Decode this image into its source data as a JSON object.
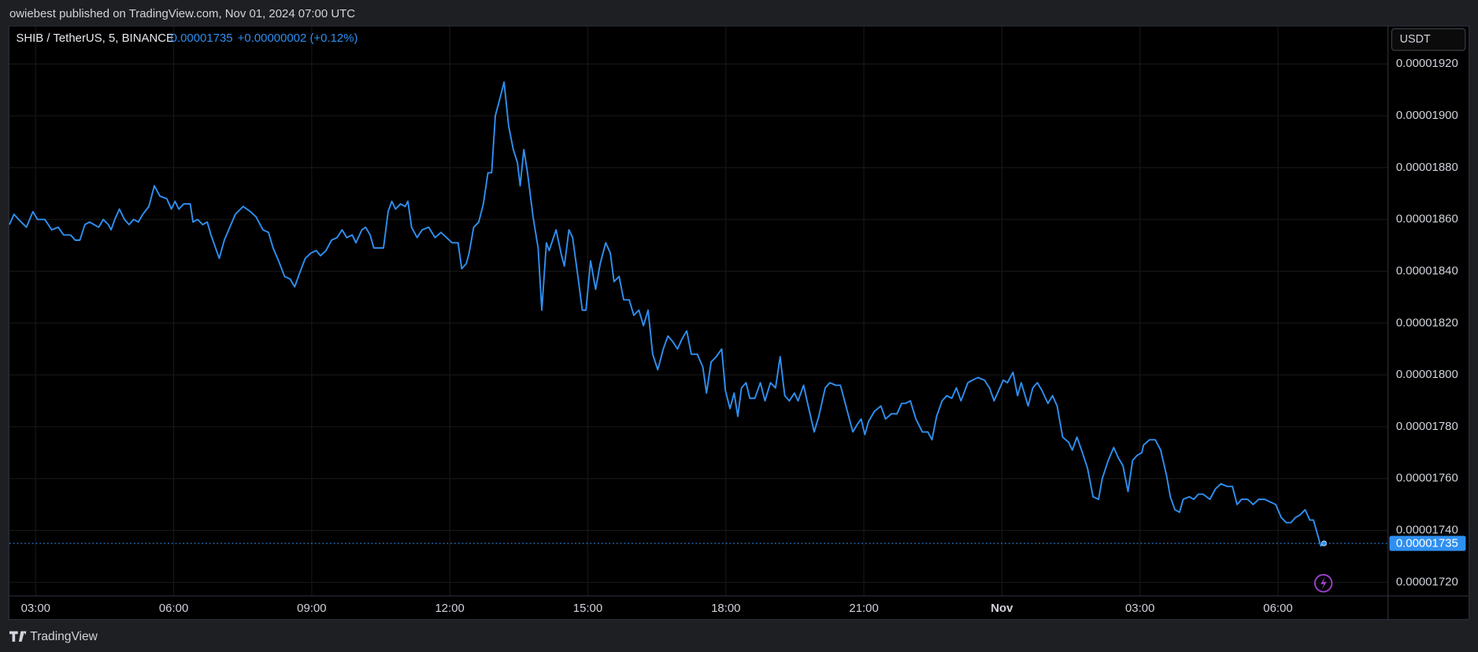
{
  "header": {
    "published": "owiebest published on TradingView.com, Nov 01, 2024 07:00 UTC",
    "symbol": "SHIB / TetherUS, 5, BINANCE",
    "change": "+0.00000002 (+0.12%)",
    "currency": "USDT",
    "brand": "TradingView"
  },
  "chart_data": {
    "type": "line",
    "color": "#2f8ff0",
    "grid": true,
    "last_price": 1.735e-05,
    "xlim": [
      2.43,
      32.38
    ],
    "xticks": [
      {
        "value": 3,
        "label": "03:00"
      },
      {
        "value": 6,
        "label": "06:00"
      },
      {
        "value": 9,
        "label": "09:00"
      },
      {
        "value": 12,
        "label": "12:00"
      },
      {
        "value": 15,
        "label": "15:00"
      },
      {
        "value": 18,
        "label": "18:00"
      },
      {
        "value": 21,
        "label": "21:00"
      },
      {
        "value": 24,
        "label": "Nov"
      },
      {
        "value": 27,
        "label": "03:00"
      },
      {
        "value": 30,
        "label": "06:00"
      }
    ],
    "ylim": [
      1.7149e-05,
      1.9345e-05
    ],
    "yticks": [
      {
        "value": 1.72e-05,
        "label": "0.00001720"
      },
      {
        "value": 1.74e-05,
        "label": "0.00001740"
      },
      {
        "value": 1.76e-05,
        "label": "0.00001760"
      },
      {
        "value": 1.78e-05,
        "label": "0.00001780"
      },
      {
        "value": 1.8e-05,
        "label": "0.00001800"
      },
      {
        "value": 1.82e-05,
        "label": "0.00001820"
      },
      {
        "value": 1.84e-05,
        "label": "0.00001840"
      },
      {
        "value": 1.86e-05,
        "label": "0.00001860"
      },
      {
        "value": 1.88e-05,
        "label": "0.00001880"
      },
      {
        "value": 1.9e-05,
        "label": "0.00001900"
      },
      {
        "value": 1.92e-05,
        "label": "0.00001920"
      }
    ],
    "x": [
      2.43,
      2.53,
      2.63,
      2.8,
      2.94,
      3.04,
      3.2,
      3.35,
      3.49,
      3.61,
      3.76,
      3.86,
      3.96,
      4.07,
      4.17,
      4.27,
      4.37,
      4.47,
      4.58,
      4.64,
      4.72,
      4.82,
      4.93,
      5.03,
      5.13,
      5.23,
      5.33,
      5.46,
      5.58,
      5.7,
      5.85,
      5.95,
      6.03,
      6.11,
      6.22,
      6.36,
      6.42,
      6.52,
      6.63,
      6.73,
      6.81,
      6.89,
      6.99,
      7.1,
      7.22,
      7.34,
      7.51,
      7.67,
      7.79,
      7.94,
      8.06,
      8.16,
      8.28,
      8.41,
      8.53,
      8.63,
      8.73,
      8.86,
      8.98,
      9.1,
      9.19,
      9.31,
      9.43,
      9.55,
      9.66,
      9.76,
      9.88,
      9.96,
      10.09,
      10.17,
      10.27,
      10.35,
      10.56,
      10.66,
      10.74,
      10.82,
      10.93,
      11.03,
      11.09,
      11.17,
      11.29,
      11.4,
      11.54,
      11.68,
      11.81,
      11.93,
      12.05,
      12.18,
      12.26,
      12.36,
      12.42,
      12.52,
      12.63,
      12.73,
      12.83,
      12.91,
      12.99,
      13.08,
      13.18,
      13.28,
      13.38,
      13.47,
      13.53,
      13.61,
      13.69,
      13.81,
      13.92,
      14.0,
      14.1,
      14.16,
      14.31,
      14.43,
      14.49,
      14.59,
      14.67,
      14.8,
      14.88,
      14.96,
      15.06,
      15.17,
      15.27,
      15.39,
      15.49,
      15.57,
      15.68,
      15.78,
      15.9,
      16.0,
      16.11,
      16.21,
      16.31,
      16.41,
      16.52,
      16.64,
      16.74,
      16.84,
      16.95,
      17.05,
      17.15,
      17.25,
      17.38,
      17.5,
      17.58,
      17.68,
      17.79,
      17.91,
      17.99,
      18.09,
      18.18,
      18.26,
      18.34,
      18.44,
      18.52,
      18.63,
      18.75,
      18.85,
      18.97,
      19.08,
      19.18,
      19.28,
      19.38,
      19.49,
      19.57,
      19.69,
      19.79,
      19.92,
      20.02,
      20.16,
      20.26,
      20.39,
      20.49,
      20.61,
      20.76,
      20.86,
      20.94,
      21.02,
      21.1,
      21.23,
      21.37,
      21.47,
      21.6,
      21.72,
      21.82,
      21.9,
      22.01,
      22.13,
      22.27,
      22.39,
      22.48,
      22.58,
      22.7,
      22.8,
      22.91,
      23.01,
      23.11,
      23.26,
      23.36,
      23.48,
      23.62,
      23.73,
      23.83,
      23.93,
      24.03,
      24.12,
      24.24,
      24.34,
      24.42,
      24.57,
      24.67,
      24.77,
      24.87,
      25.0,
      25.1,
      25.2,
      25.32,
      25.45,
      25.53,
      25.63,
      25.73,
      25.86,
      25.98,
      26.1,
      26.18,
      26.31,
      26.43,
      26.53,
      26.63,
      26.74,
      26.84,
      26.94,
      27.04,
      27.08,
      27.21,
      27.33,
      27.45,
      27.58,
      27.66,
      27.76,
      27.86,
      27.94,
      28.07,
      28.17,
      28.27,
      28.37,
      28.52,
      28.64,
      28.76,
      28.89,
      29.01,
      29.11,
      29.21,
      29.34,
      29.46,
      29.58,
      29.71,
      29.83,
      29.95,
      30.07,
      30.18,
      30.28,
      30.38,
      30.48,
      30.59,
      30.69,
      30.77,
      30.85,
      30.93,
      31.0
    ],
    "values": [
      1.858e-05,
      1.862e-05,
      1.86e-05,
      1.857e-05,
      1.863e-05,
      1.86e-05,
      1.86e-05,
      1.856e-05,
      1.857e-05,
      1.854e-05,
      1.854e-05,
      1.852e-05,
      1.852e-05,
      1.858e-05,
      1.859e-05,
      1.858e-05,
      1.857e-05,
      1.86e-05,
      1.858e-05,
      1.856e-05,
      1.86e-05,
      1.864e-05,
      1.86e-05,
      1.858e-05,
      1.86e-05,
      1.859e-05,
      1.862e-05,
      1.865e-05,
      1.873e-05,
      1.869e-05,
      1.868e-05,
      1.864e-05,
      1.867e-05,
      1.864e-05,
      1.866e-05,
      1.866e-05,
      1.859e-05,
      1.86e-05,
      1.858e-05,
      1.859e-05,
      1.854e-05,
      1.85e-05,
      1.845e-05,
      1.852e-05,
      1.857e-05,
      1.862e-05,
      1.865e-05,
      1.863e-05,
      1.861e-05,
      1.856e-05,
      1.855e-05,
      1.849e-05,
      1.844e-05,
      1.838e-05,
      1.837e-05,
      1.834e-05,
      1.839e-05,
      1.845e-05,
      1.847e-05,
      1.848e-05,
      1.846e-05,
      1.848e-05,
      1.852e-05,
      1.853e-05,
      1.856e-05,
      1.853e-05,
      1.854e-05,
      1.851e-05,
      1.856e-05,
      1.857e-05,
      1.854e-05,
      1.849e-05,
      1.849e-05,
      1.863e-05,
      1.867e-05,
      1.864e-05,
      1.866e-05,
      1.865e-05,
      1.867e-05,
      1.857e-05,
      1.853e-05,
      1.856e-05,
      1.857e-05,
      1.853e-05,
      1.855e-05,
      1.853e-05,
      1.851e-05,
      1.851e-05,
      1.841e-05,
      1.843e-05,
      1.847e-05,
      1.857e-05,
      1.859e-05,
      1.866e-05,
      1.878e-05,
      1.878e-05,
      1.9e-05,
      1.906e-05,
      1.913e-05,
      1.896e-05,
      1.887e-05,
      1.882e-05,
      1.873e-05,
      1.887e-05,
      1.878e-05,
      1.861e-05,
      1.849e-05,
      1.825e-05,
      1.851e-05,
      1.848e-05,
      1.856e-05,
      1.846e-05,
      1.842e-05,
      1.856e-05,
      1.853e-05,
      1.836e-05,
      1.825e-05,
      1.825e-05,
      1.844e-05,
      1.833e-05,
      1.843e-05,
      1.851e-05,
      1.847e-05,
      1.836e-05,
      1.838e-05,
      1.829e-05,
      1.829e-05,
      1.823e-05,
      1.825e-05,
      1.819e-05,
      1.825e-05,
      1.808e-05,
      1.802e-05,
      1.81e-05,
      1.815e-05,
      1.813e-05,
      1.81e-05,
      1.814e-05,
      1.817e-05,
      1.808e-05,
      1.808e-05,
      1.803e-05,
      1.793e-05,
      1.805e-05,
      1.807e-05,
      1.81e-05,
      1.794e-05,
      1.787e-05,
      1.793e-05,
      1.784e-05,
      1.795e-05,
      1.797e-05,
      1.791e-05,
      1.791e-05,
      1.797e-05,
      1.79e-05,
      1.797e-05,
      1.795e-05,
      1.807e-05,
      1.792e-05,
      1.79e-05,
      1.793e-05,
      1.79e-05,
      1.796e-05,
      1.788e-05,
      1.778e-05,
      1.784e-05,
      1.795e-05,
      1.797e-05,
      1.796e-05,
      1.796e-05,
      1.788e-05,
      1.778e-05,
      1.781e-05,
      1.783e-05,
      1.777e-05,
      1.782e-05,
      1.786e-05,
      1.788e-05,
      1.783e-05,
      1.785e-05,
      1.785e-05,
      1.789e-05,
      1.789e-05,
      1.79e-05,
      1.783e-05,
      1.778e-05,
      1.778e-05,
      1.775e-05,
      1.784e-05,
      1.79e-05,
      1.792e-05,
      1.791e-05,
      1.795e-05,
      1.79e-05,
      1.797e-05,
      1.798e-05,
      1.799e-05,
      1.798e-05,
      1.795e-05,
      1.79e-05,
      1.794e-05,
      1.798e-05,
      1.797e-05,
      1.801e-05,
      1.792e-05,
      1.797e-05,
      1.788e-05,
      1.795e-05,
      1.797e-05,
      1.794e-05,
      1.789e-05,
      1.792e-05,
      1.788e-05,
      1.776e-05,
      1.774e-05,
      1.771e-05,
      1.776e-05,
      1.771e-05,
      1.764e-05,
      1.753e-05,
      1.752e-05,
      1.76e-05,
      1.767e-05,
      1.772e-05,
      1.768e-05,
      1.765e-05,
      1.755e-05,
      1.767e-05,
      1.769e-05,
      1.77e-05,
      1.773e-05,
      1.775e-05,
      1.775e-05,
      1.771e-05,
      1.761e-05,
      1.753e-05,
      1.748e-05,
      1.747e-05,
      1.752e-05,
      1.753e-05,
      1.752e-05,
      1.754e-05,
      1.754e-05,
      1.752e-05,
      1.756e-05,
      1.758e-05,
      1.757e-05,
      1.757e-05,
      1.75e-05,
      1.752e-05,
      1.752e-05,
      1.75e-05,
      1.752e-05,
      1.752e-05,
      1.751e-05,
      1.75e-05,
      1.745e-05,
      1.743e-05,
      1.743e-05,
      1.745e-05,
      1.746e-05,
      1.748e-05,
      1.744e-05,
      1.744e-05,
      1.739e-05,
      1.734e-05,
      1.735e-05
    ]
  }
}
